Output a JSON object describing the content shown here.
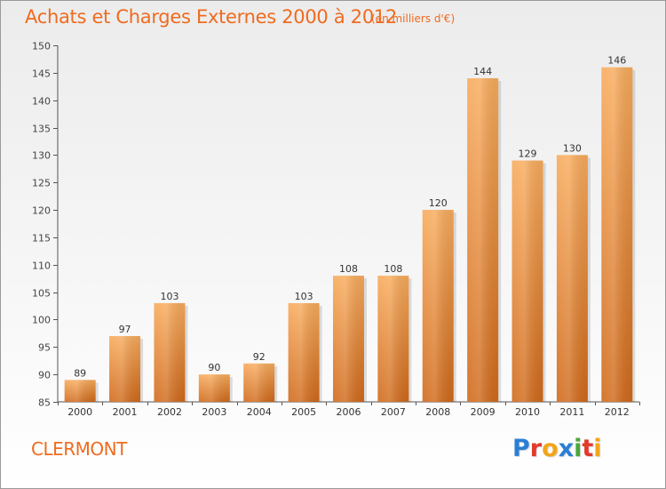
{
  "header": {
    "title": "Achats et Charges Externes 2000 à 2012",
    "subtitle": "(en milliers d'€)"
  },
  "footer": {
    "place": "CLERMONT",
    "logo_text": "Proxiti",
    "logo_letters": [
      {
        "ch": "P",
        "color": "#2a7fd4"
      },
      {
        "ch": "r",
        "color": "#e23a2b"
      },
      {
        "ch": "o",
        "color": "#f2a51a"
      },
      {
        "ch": "x",
        "color": "#2a7fd4"
      },
      {
        "ch": "i",
        "color": "#49a83b"
      },
      {
        "ch": "t",
        "color": "#e23a2b"
      },
      {
        "ch": "i",
        "color": "#f2a51a"
      }
    ]
  },
  "colors": {
    "accent": "#ef6b1f",
    "bar_light": "#f7a95a",
    "bar_dark": "#d36e1d",
    "grid": "#d0d0d0",
    "axis": "#555555"
  },
  "chart_data": {
    "type": "bar",
    "title": "Achats et Charges Externes 2000 à 2012",
    "subtitle": "(en milliers d'€)",
    "categories": [
      "2000",
      "2001",
      "2002",
      "2003",
      "2004",
      "2005",
      "2006",
      "2007",
      "2008",
      "2009",
      "2010",
      "2011",
      "2012"
    ],
    "values": [
      89,
      97,
      103,
      90,
      92,
      103,
      108,
      108,
      120,
      144,
      129,
      130,
      146
    ],
    "ylim": [
      85,
      150
    ],
    "yticks": [
      85,
      90,
      95,
      100,
      105,
      110,
      115,
      120,
      125,
      130,
      135,
      140,
      145,
      150
    ],
    "grid": false,
    "data_labels": true
  }
}
